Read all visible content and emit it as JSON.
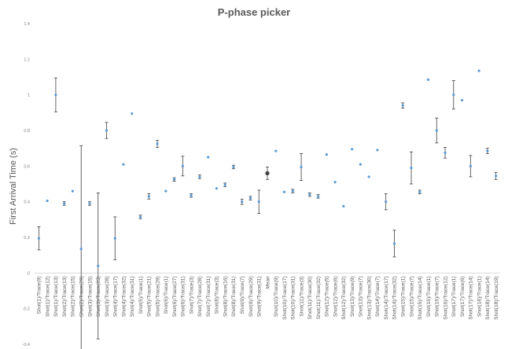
{
  "chart_data": {
    "type": "scatter",
    "title": "P-phase picker",
    "ylabel": "First Arrival Time (s)",
    "xlabel": "",
    "ylim": [
      -0.4,
      1.4
    ],
    "yticks": [
      "-0.4",
      "-0.2",
      "0",
      "0.2",
      "0.4",
      "0.6",
      "0.8",
      "1",
      "1.2",
      "1.4"
    ],
    "grid": false,
    "legend": "none",
    "marker_color": "#5b9bd5",
    "errorbar_color": "#404040",
    "mean_color": "#404040",
    "categories": [
      "Shot(1)/Trace(9)",
      "Shot(1)/Trace(12)",
      "Shot(1)/Trace(13)",
      "Shot(2)/Trace(13)",
      "Shot(2)/Trace(15)",
      "Shot(2)/Trace(29)",
      "Shot(3)/Trace(15)",
      "Shot(3)/Trace(23)",
      "Shot(3)/Trace(28)",
      "Shot(4)/Trace(17)",
      "Shot(4)/Trace(32)",
      "Shot(4)/Trace(31)",
      "Shot(5)/Trace(1)",
      "Shot(5)/Trace(21)",
      "Shot(5)/Trace(29)",
      "Shot(6)/Trace(1)",
      "Shot(6)/Trace(27)",
      "Shot(6)/Trace(31)",
      "Shot(7)/Trace(3)",
      "Shot(7)/Trace(28)",
      "Shot(7)/Trace(31)",
      "Shot(8)/Trace(3)",
      "Shot(8)/Trace(16)",
      "Shot(8)/Trace(31)",
      "Shot(9)/Trace(7)",
      "Shot(9)/Trace(29)",
      "Shot(9)/Trace(31)",
      "Mean",
      "Shot(10)/Trace(9)",
      "Shot(10)/Trace(17)",
      "Shot(10)/Trace(31)",
      "Shot(11)/Trace(3)",
      "Shot(11)/Trace(30)",
      "Shot(11)/Trace(32)",
      "Shot(12)/Trace(5)",
      "Shot(12)/Trace(6)",
      "Shot(12)/Trace(32)",
      "Shot(13)/Trace(9)",
      "Shot(13)/Trace(7)",
      "Shot(13)/Trace(30)",
      "Shot(14)/Trace(7)",
      "Shot(14)/Trace(17)",
      "Shot(14)/Trace(32)",
      "Shot(15)/Trace(1)",
      "Shot(15)/Trace(7)",
      "Shot(15)/Trace(14)",
      "Shot(16)/Trace(1)",
      "Shot(16)/Trace(7)",
      "Shot(16)/Trace(12)",
      "Shot(17)/Trace(1)",
      "Shot(17)/Trace(6)",
      "Shot(17)/Trace(14)",
      "Shot(18)/Trace(1)",
      "Shot(18)/Trace(14)",
      "Shot(18)/Trace(19)"
    ],
    "values": [
      0.195,
      0.405,
      1.0,
      0.39,
      0.46,
      0.135,
      0.39,
      0.04,
      0.8,
      0.195,
      0.61,
      0.895,
      0.315,
      0.43,
      0.725,
      0.46,
      0.525,
      0.6,
      0.435,
      0.54,
      0.65,
      0.475,
      0.495,
      0.595,
      0.4,
      0.42,
      0.4,
      0.56,
      0.685,
      0.455,
      0.46,
      0.595,
      0.44,
      0.43,
      0.665,
      0.51,
      0.375,
      0.695,
      0.61,
      0.54,
      0.69,
      0.4,
      0.165,
      0.94,
      0.59,
      0.455,
      1.085,
      0.8,
      0.675,
      1.0,
      0.97,
      0.6,
      1.135,
      0.685,
      0.545
    ],
    "errors": [
      0.065,
      0.0,
      0.095,
      0.01,
      0.0,
      0.58,
      0.01,
      0.41,
      0.045,
      0.12,
      0.0,
      0.0,
      0.01,
      0.015,
      0.02,
      0.0,
      0.01,
      0.055,
      0.01,
      0.01,
      0.0,
      0.0,
      0.01,
      0.01,
      0.015,
      0.01,
      0.065,
      0.035,
      0.0,
      0.0,
      0.01,
      0.075,
      0.01,
      0.01,
      0.0,
      0.0,
      0.0,
      0.0,
      0.0,
      0.0,
      0.0,
      0.045,
      0.075,
      0.015,
      0.09,
      0.01,
      0.0,
      0.07,
      0.03,
      0.08,
      0.0,
      0.06,
      0.0,
      0.015,
      0.02
    ]
  }
}
